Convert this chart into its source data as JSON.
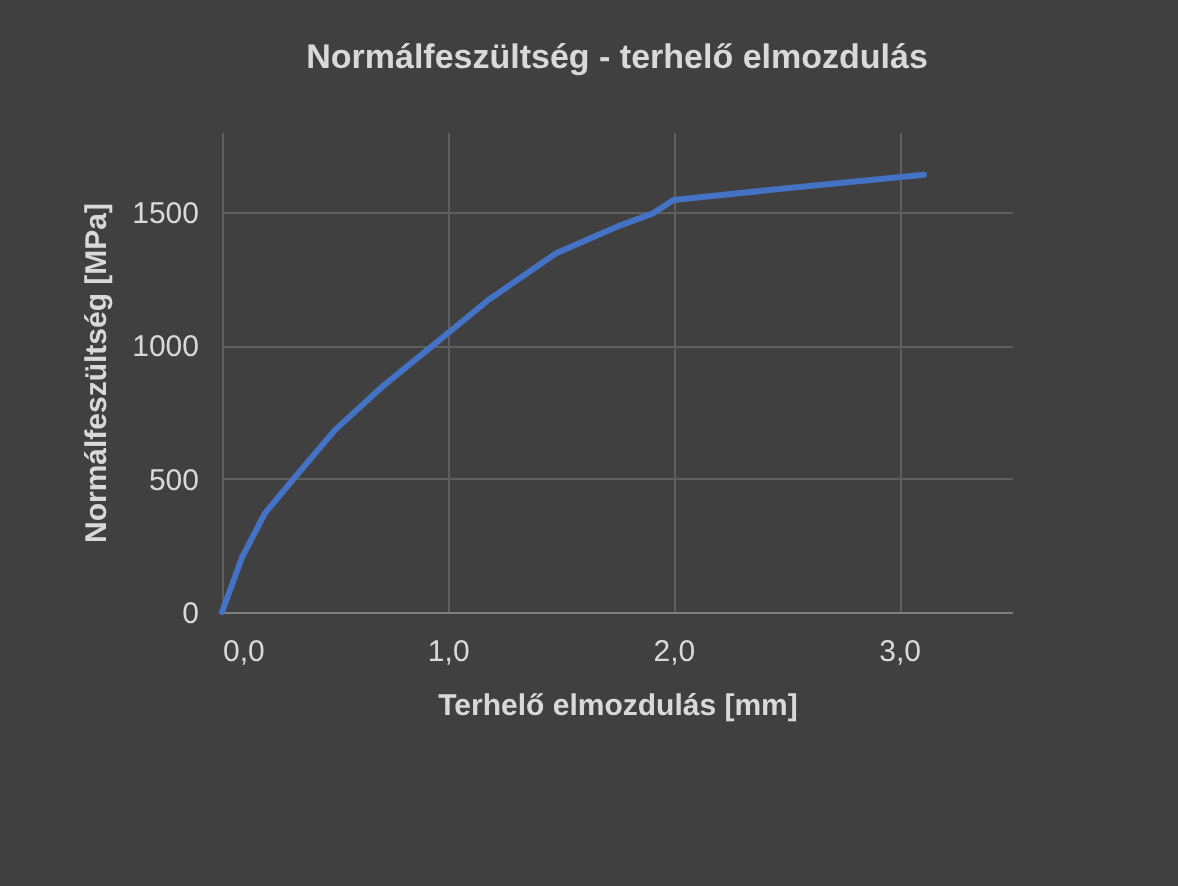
{
  "chart_data": {
    "type": "line",
    "title": "Normálfeszültség - terhelő elmozdulás",
    "xlabel": "Terhelő elmozdulás [mm]",
    "ylabel": "Normálfeszültség [MPa]",
    "series": [
      {
        "color": "#4472c4",
        "x": [
          0,
          0.09,
          0.19,
          0.3,
          0.5,
          0.71,
          1.0,
          1.18,
          1.48,
          1.75,
          1.91,
          2.0,
          2.49,
          3.11
        ],
        "values": [
          0,
          207,
          370,
          482,
          682,
          845,
          1045,
          1170,
          1345,
          1445,
          1495,
          1545,
          1588,
          1640
        ]
      }
    ],
    "xlim": [
      0,
      3.5
    ],
    "xticks": [
      {
        "value": 0,
        "label": "0,0"
      },
      {
        "value": 1,
        "label": "1,0"
      },
      {
        "value": 2,
        "label": "2,0"
      },
      {
        "value": 3,
        "label": "3,0"
      }
    ],
    "ylim": [
      0,
      1800
    ],
    "yticks": [
      0,
      500,
      1000,
      1500
    ],
    "grid": true,
    "legend": false,
    "marker": "none",
    "line_style": "solid"
  }
}
